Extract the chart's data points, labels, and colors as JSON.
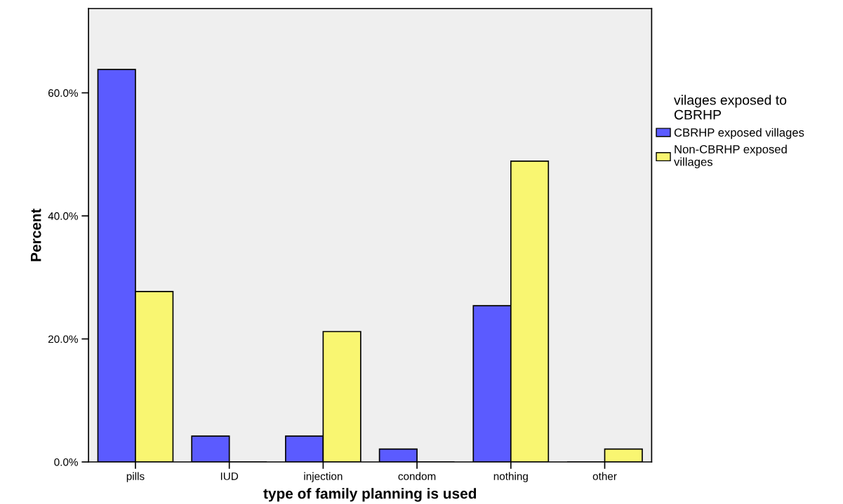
{
  "chart_data": {
    "type": "bar",
    "xlabel": "type of family planning is used",
    "ylabel": "Percent",
    "legend_title": "vilages exposed to\nCBRHP",
    "categories": [
      "pills",
      "IUD",
      "injection",
      "condom",
      "nothing",
      "other"
    ],
    "series": [
      {
        "name": "CBRHP exposed villages",
        "color": "#5b5bff",
        "values": [
          63.8,
          4.2,
          4.2,
          2.1,
          25.4,
          0
        ]
      },
      {
        "name": "Non-CBRHP exposed\nvillages",
        "color": "#f9f671",
        "values": [
          27.7,
          0,
          21.2,
          0,
          48.9,
          2.1
        ]
      }
    ],
    "ylim": [
      0,
      73.7
    ],
    "yticks": [
      {
        "value": 0,
        "label": "0.0%"
      },
      {
        "value": 20,
        "label": "20.0%"
      },
      {
        "value": 40,
        "label": "40.0%"
      },
      {
        "value": 60,
        "label": "60.0%"
      }
    ],
    "grid": false,
    "legend": "right"
  }
}
